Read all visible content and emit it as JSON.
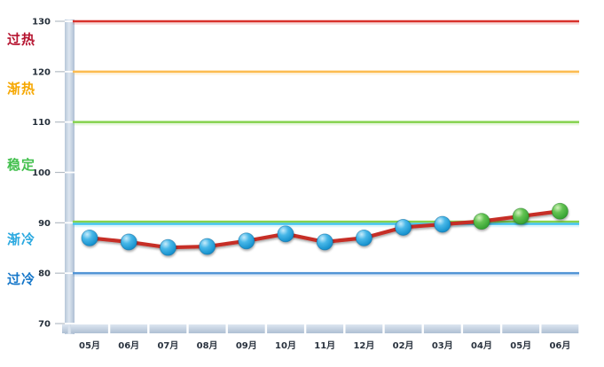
{
  "chart_data": {
    "type": "line",
    "title": "",
    "xlabel": "",
    "ylabel": "",
    "grid": false,
    "legend": false,
    "ylim": [
      70,
      130
    ],
    "yticks": [
      130,
      120,
      110,
      100,
      90,
      80,
      70
    ],
    "categories": [
      "05月",
      "06月",
      "07月",
      "08月",
      "09月",
      "10月",
      "11月",
      "12月",
      "02月",
      "03月",
      "04月",
      "05月",
      "06月"
    ],
    "series": [
      {
        "name": "",
        "values": [
          87,
          86.2,
          85.1,
          85.3,
          86.4,
          87.8,
          86.2,
          87,
          89.1,
          89.7,
          90.3,
          91.3,
          92.3
        ],
        "line_color": "#c62f28",
        "marker_colors": [
          "blue",
          "blue",
          "blue",
          "blue",
          "blue",
          "blue",
          "blue",
          "blue",
          "blue",
          "blue",
          "green",
          "green",
          "green"
        ]
      }
    ],
    "reference_lines": [
      {
        "value": 130,
        "colors": [
          "#d8312b"
        ]
      },
      {
        "value": 120,
        "colors": [
          "#fcbc50"
        ]
      },
      {
        "value": 110,
        "colors": [
          "#85d24d"
        ]
      },
      {
        "value": 90,
        "colors": [
          "#85d24d",
          "#45c5f0"
        ]
      },
      {
        "value": 80,
        "colors": [
          "#5295d5"
        ]
      }
    ],
    "zone_labels": [
      {
        "text": "过热",
        "color": "#b5122e",
        "at_value": 126.4
      },
      {
        "text": "渐热",
        "color": "#f6a803",
        "at_value": 116.6
      },
      {
        "text": "稳定",
        "color": "#43c04e",
        "at_value": 101.5
      },
      {
        "text": "渐冷",
        "color": "#2ba9e0",
        "at_value": 86.7
      },
      {
        "text": "过冷",
        "color": "#1677c9",
        "at_value": 78.8
      }
    ],
    "axis_colors": {
      "tick_label_color": "#252f3a",
      "xtick_label_color": "#29323e",
      "tick_dash_color": "#b4bcc4"
    },
    "marker_styles": {
      "blue": {
        "top": "#c8ecfb",
        "mid": "#47b7e8",
        "deep": "#1590cc",
        "edge": "#0a679e"
      },
      "green": {
        "top": "#d2f2bc",
        "mid": "#63c353",
        "deep": "#36a232",
        "edge": "#217821"
      }
    }
  }
}
